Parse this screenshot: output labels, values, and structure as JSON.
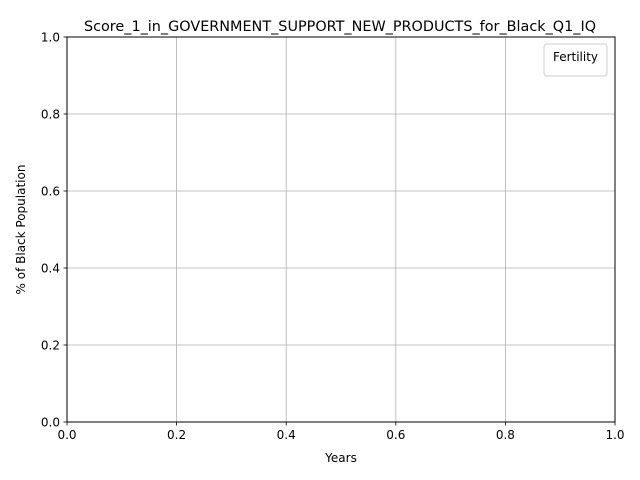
{
  "chart_data": {
    "type": "line",
    "title": "Score_1_in_GOVERNMENT_SUPPORT_NEW_PRODUCTS_for_Black_Q1_IQ",
    "xlabel": "Years",
    "ylabel": "% of Black Population",
    "xlim": [
      0.0,
      1.0
    ],
    "ylim": [
      0.0,
      1.0
    ],
    "x_ticks": [
      "0.0",
      "0.2",
      "0.4",
      "0.6",
      "0.8",
      "1.0"
    ],
    "y_ticks": [
      "0.0",
      "0.2",
      "0.4",
      "0.6",
      "0.8",
      "1.0"
    ],
    "grid": true,
    "legend": {
      "title": "Fertility",
      "placement": "top-right",
      "entries": []
    },
    "series": []
  }
}
